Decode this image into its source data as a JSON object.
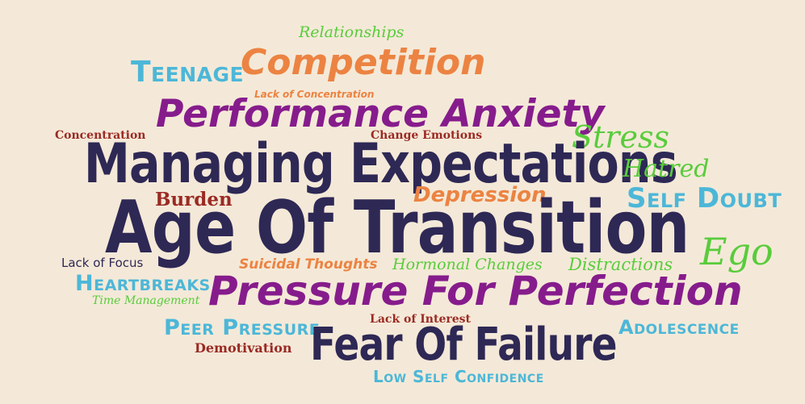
{
  "colors": {
    "background": "#f4e9d8",
    "navy": "#2e2855",
    "purple": "#861c8c",
    "orange": "#ec8342",
    "green": "#59cc3c",
    "lightblue": "#4cb7d8",
    "darkred": "#9b2a24"
  },
  "words": {
    "relationships": "Relationships",
    "teenage": "Teenage",
    "competition": "Competition",
    "lack_of_concentration": "Lack of Concentration",
    "performance_anxiety": "Performance Anxiety",
    "concentration": "Concentration",
    "change_emotions": "Change Emotions",
    "stress": "Stress",
    "managing_expectations": "Managing Expectations",
    "hatred": "Hatred",
    "burden": "Burden",
    "depression": "Depression",
    "self_doubt": "Self Doubt",
    "age_of_transition": "Age Of Transition",
    "ego": "Ego",
    "lack_of_focus": "Lack of Focus",
    "suicidal_thoughts": "Suicidal Thoughts",
    "hormonal_changes": "Hormonal Changes",
    "distractions": "Distractions",
    "heartbreaks": "Heartbreaks",
    "pressure_for_perfection": "Pressure For Perfection",
    "time_management": "Time Management",
    "lack_of_interest": "Lack of Interest",
    "peer_pressure": "Peer Pressure",
    "adolescence": "Adolescence",
    "demotivation": "Demotivation",
    "fear_of_failure": "Fear Of Failure",
    "low_self_confidence": "Low Self Confidence"
  }
}
